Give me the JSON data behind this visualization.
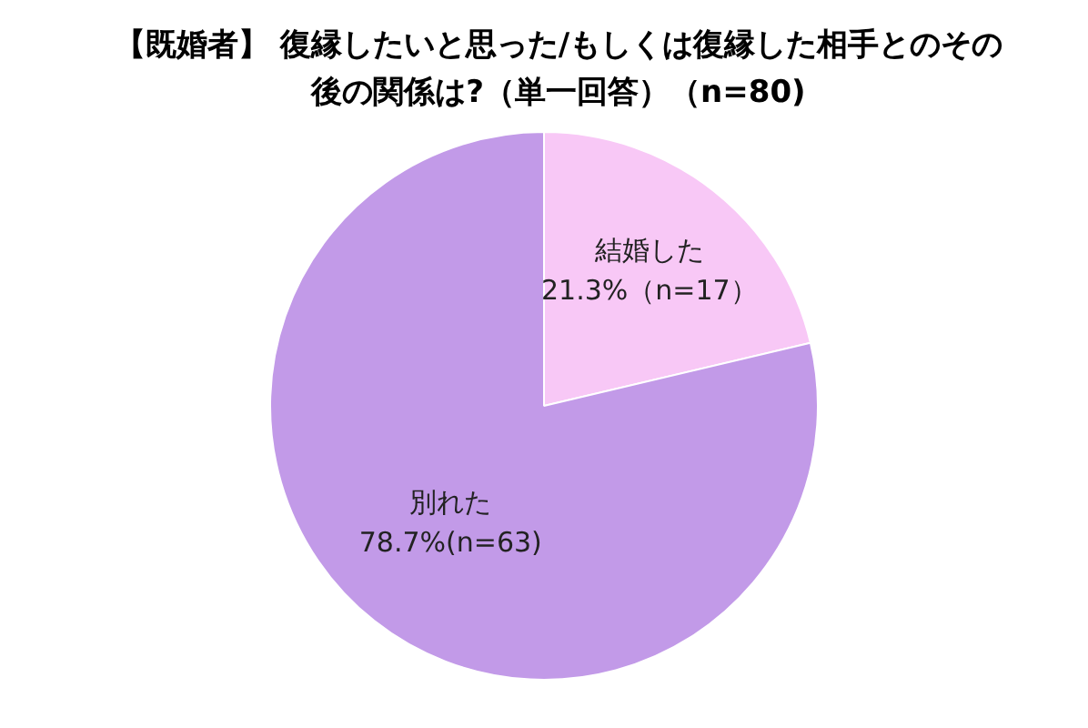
{
  "chart_data": {
    "type": "pie",
    "title": "【既婚者】 復縁したいと思った/もしくは復縁した相手とのその後の関係は?（単一回答）（n=80)",
    "categories": [
      "結婚した",
      "別れた"
    ],
    "values": [
      21.3,
      78.7
    ],
    "colors": [
      "#f8c8f6",
      "#c29ae8"
    ],
    "value_labels": [
      "21.3%（n=17）",
      "78.7%(n=63)"
    ],
    "legend": false
  }
}
